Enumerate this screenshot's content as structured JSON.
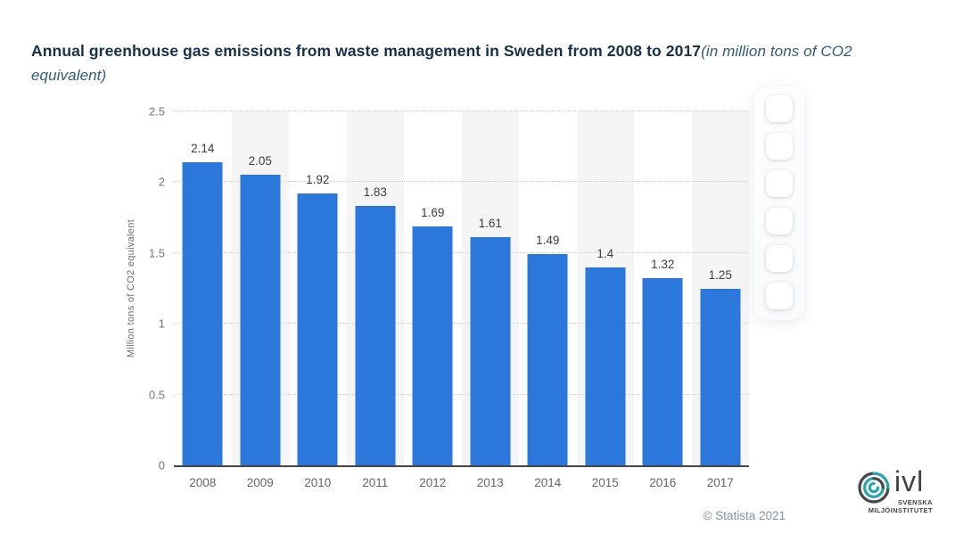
{
  "title": {
    "main": "Annual greenhouse gas emissions from waste management in Sweden from 2008 to 2017",
    "subtitle": "(in million tons of CO2 equivalent)"
  },
  "chart_data": {
    "type": "bar",
    "categories": [
      "2008",
      "2009",
      "2010",
      "2011",
      "2012",
      "2013",
      "2014",
      "2015",
      "2016",
      "2017"
    ],
    "values": [
      2.14,
      2.05,
      1.92,
      1.83,
      1.69,
      1.61,
      1.49,
      1.4,
      1.32,
      1.25
    ],
    "value_labels": [
      "2.14",
      "2.05",
      "1.92",
      "1.83",
      "1.69",
      "1.61",
      "1.49",
      "1.4",
      "1.32",
      "1.25"
    ],
    "title": "Annual greenhouse gas emissions from waste management in Sweden from 2008 to 2017 (in million tons of CO2 equivalent)",
    "xlabel": "",
    "ylabel": "Million tons of CO2 equivalent",
    "ylim": [
      0,
      2.5
    ],
    "y_ticks": [
      "0",
      "0.5",
      "1",
      "1.5",
      "2",
      "2.5"
    ],
    "grid": "horizontal dotted lines",
    "legend": "none",
    "plot_bands": "alternate category columns shaded light gray (2009, 2011, 2013, 2015, 2017)"
  },
  "colors": {
    "bar": "#2b77dc",
    "band": "#f5f5f6",
    "grid": "#d2d2d2",
    "axis_line": "#454545",
    "title": "#16314d",
    "subtitle": "#2e5a7d",
    "value_label": "#3c3c3c",
    "tick_label": "#757575",
    "copyright": "#8093ab",
    "ivl_teal": "#2aa2b1",
    "ivl_dark": "#45484b"
  },
  "toolbar": {
    "visible_buttons": 6
  },
  "footer": {
    "copyright": "© Statista 2021"
  },
  "branding": {
    "org": "ivl",
    "line1": "SVENSKA",
    "line2": "MILJÖINSTITUTET"
  }
}
